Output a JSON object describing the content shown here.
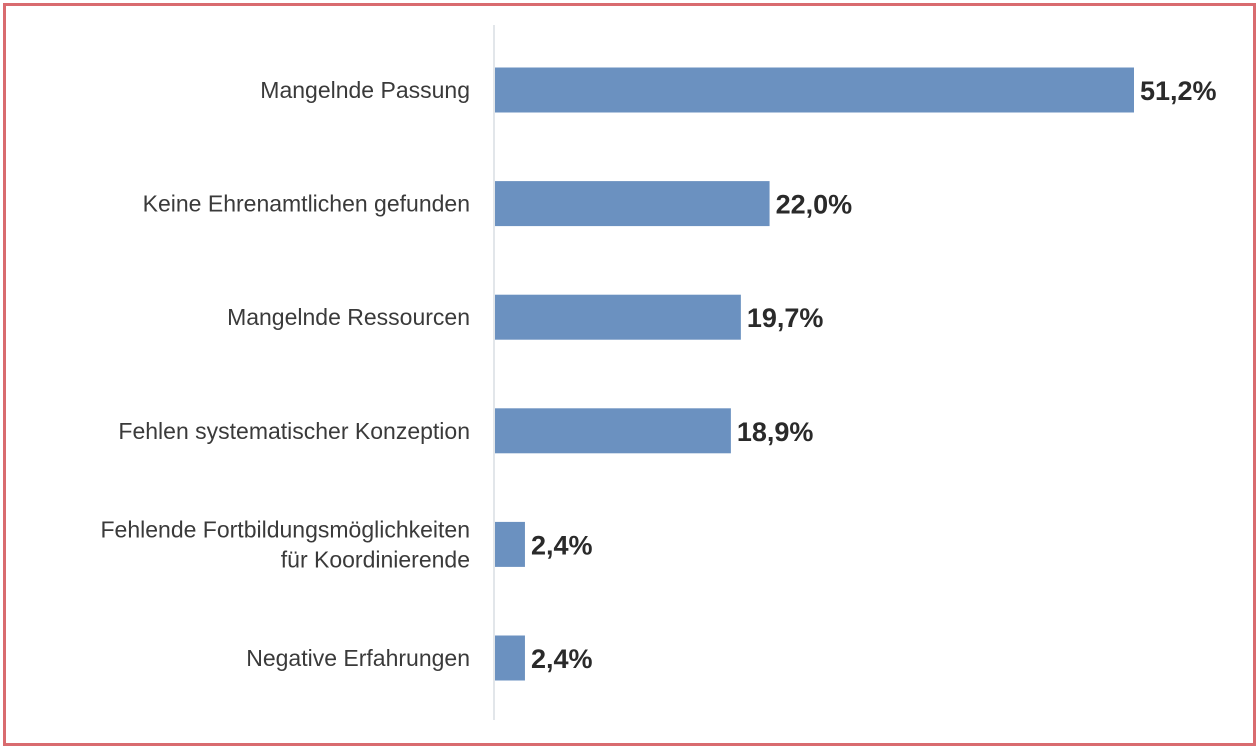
{
  "chart_data": {
    "type": "bar",
    "orientation": "horizontal",
    "title": "",
    "xlabel": "",
    "ylabel": "",
    "xlim": [
      0,
      51.2
    ],
    "grid": false,
    "legend": "none",
    "categories": [
      [
        "Mangelnde Passung"
      ],
      [
        "Keine Ehrenamtlichen gefunden"
      ],
      [
        "Mangelnde Ressourcen"
      ],
      [
        "Fehlen systematischer Konzeption"
      ],
      [
        "Fehlende Fortbildungsmöglichkeiten",
        "für Koordinierende"
      ],
      [
        "Negative Erfahrungen"
      ]
    ],
    "values": [
      51.2,
      22.0,
      19.7,
      18.9,
      2.4,
      2.4
    ],
    "value_labels": [
      "51,2%",
      "22,0%",
      "19,7%",
      "18,9%",
      "2,4%",
      "2,4%"
    ],
    "bar_color": "#6b91c0",
    "frame_color": "#d96b6f"
  }
}
